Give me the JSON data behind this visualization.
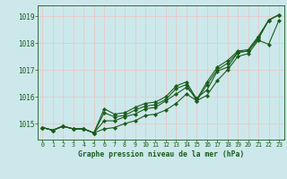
{
  "title": "Graphe pression niveau de la mer (hPa)",
  "bg_color": "#cce8eb",
  "grid_color": "#b0d4d8",
  "line_color": "#1a5c1a",
  "marker_color": "#1a5c1a",
  "x_ticks": [
    0,
    1,
    2,
    3,
    4,
    5,
    6,
    7,
    8,
    9,
    10,
    11,
    12,
    13,
    14,
    15,
    16,
    17,
    18,
    19,
    20,
    21,
    22,
    23
  ],
  "y_ticks": [
    1015,
    1016,
    1017,
    1018,
    1019
  ],
  "ylim": [
    1014.4,
    1019.4
  ],
  "xlim": [
    -0.5,
    23.5
  ],
  "series": [
    [
      1014.85,
      1014.75,
      1014.9,
      1014.8,
      1014.8,
      1014.65,
      1014.8,
      1014.85,
      1015.0,
      1015.1,
      1015.3,
      1015.35,
      1015.5,
      1015.75,
      1016.1,
      1015.85,
      1016.05,
      1016.6,
      1017.0,
      1017.5,
      1017.6,
      1018.1,
      1017.95,
      1018.85
    ],
    [
      1014.85,
      1014.75,
      1014.9,
      1014.8,
      1014.8,
      1014.65,
      1015.1,
      1015.1,
      1015.25,
      1015.35,
      1015.55,
      1015.6,
      1015.85,
      1016.1,
      1016.35,
      1015.95,
      1016.25,
      1016.95,
      1017.1,
      1017.65,
      1017.7,
      1018.15,
      1018.85,
      1019.05
    ],
    [
      1014.85,
      1014.75,
      1014.9,
      1014.8,
      1014.8,
      1014.65,
      1015.4,
      1015.25,
      1015.3,
      1015.5,
      1015.65,
      1015.7,
      1015.9,
      1016.3,
      1016.45,
      1015.85,
      1016.45,
      1017.0,
      1017.25,
      1017.65,
      1017.7,
      1018.2,
      1018.85,
      1019.05
    ],
    [
      1014.85,
      1014.75,
      1014.9,
      1014.8,
      1014.8,
      1014.65,
      1015.55,
      1015.35,
      1015.4,
      1015.6,
      1015.75,
      1015.8,
      1016.0,
      1016.4,
      1016.55,
      1015.9,
      1016.55,
      1017.1,
      1017.35,
      1017.7,
      1017.75,
      1018.25,
      1018.85,
      1019.05
    ]
  ]
}
